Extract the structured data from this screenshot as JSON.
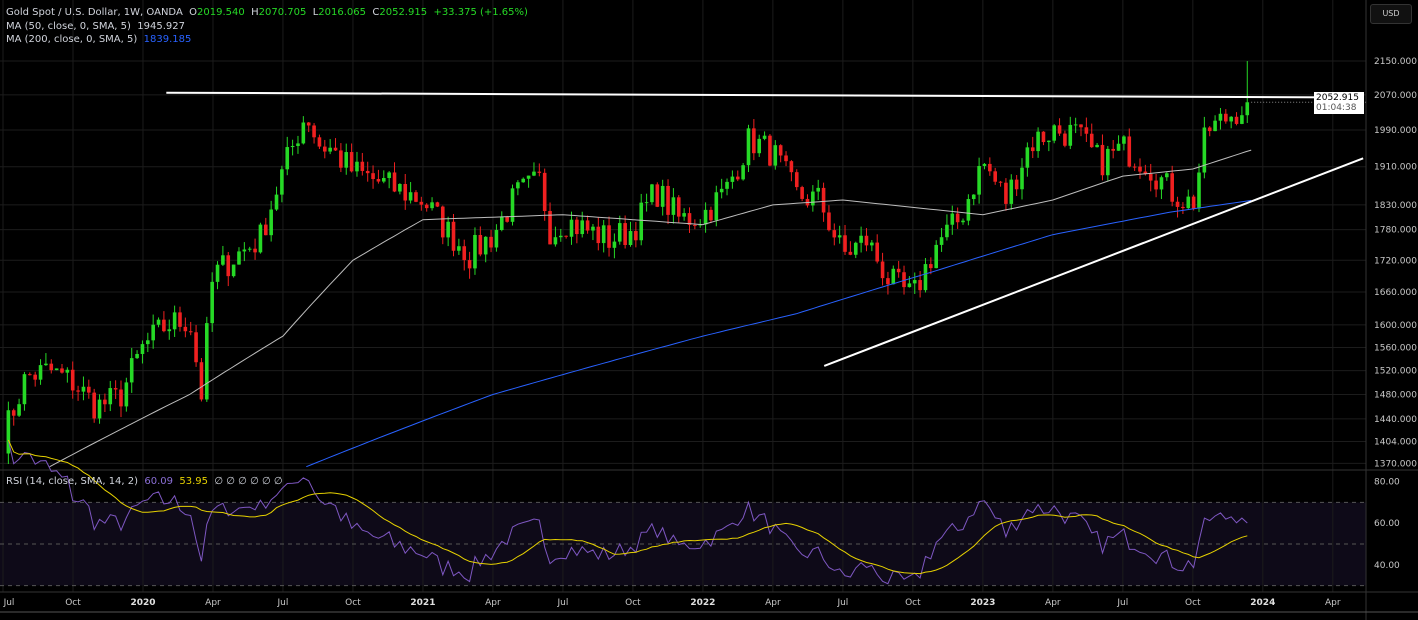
{
  "header": {
    "symbol": "Gold Spot / U.S. Dollar, 1W, OANDA",
    "o_label": "O",
    "o": "2019.540",
    "h_label": "H",
    "h": "2070.705",
    "l_label": "L",
    "l": "2016.065",
    "c_label": "C",
    "c": "2052.915",
    "change": "+33.375 (+1.65%)"
  },
  "indicators": {
    "ma50_label": "MA (50, close, 0, SMA, 5)",
    "ma50_value": "1945.927",
    "ma200_label": "MA (200, close, 0, SMA, 5)",
    "ma200_value": "1839.185",
    "rsi_label": "RSI (14, close, SMA, 14, 2)",
    "rsi_value": "60.09",
    "rsi_ma_value": "53.95",
    "rsi_extra": "∅ ∅ ∅ ∅ ∅ ∅"
  },
  "price_axis": {
    "currency": "USD",
    "last_price": "2052.915",
    "countdown": "01:04:38"
  },
  "colors": {
    "up": "#26d926",
    "down": "#f02020",
    "ma50": "#bdbdbd",
    "ma200": "#2962ff",
    "rsi": "#7e57c2",
    "rsi_ma": "#e6d100",
    "trendline": "#ffffff"
  },
  "chart_data": {
    "type": "candlestick",
    "title": "Gold Spot / U.S. Dollar, 1W, OANDA",
    "scale": "log",
    "price_ticks": [
      2150,
      2070,
      1990,
      1910,
      1830,
      1780,
      1720,
      1660,
      1600,
      1560,
      1520,
      1480,
      1440,
      1404,
      1370
    ],
    "time_ticks": [
      {
        "label": "Jul",
        "month": 0
      },
      {
        "label": "Oct",
        "month": 3
      },
      {
        "label": "2020",
        "month": 6
      },
      {
        "label": "Apr",
        "month": 9
      },
      {
        "label": "Jul",
        "month": 12
      },
      {
        "label": "Oct",
        "month": 15
      },
      {
        "label": "2021",
        "month": 18
      },
      {
        "label": "Apr",
        "month": 21
      },
      {
        "label": "Jul",
        "month": 24
      },
      {
        "label": "Oct",
        "month": 27
      },
      {
        "label": "2022",
        "month": 30
      },
      {
        "label": "Apr",
        "month": 33
      },
      {
        "label": "Jul",
        "month": 36
      },
      {
        "label": "Oct",
        "month": 39
      },
      {
        "label": "2023",
        "month": 42
      },
      {
        "label": "Apr",
        "month": 45
      },
      {
        "label": "Jul",
        "month": 48
      },
      {
        "label": "Oct",
        "month": 51
      },
      {
        "label": "2024",
        "month": 54
      },
      {
        "label": "Apr",
        "month": 57
      }
    ],
    "close_anchors_by_month": [
      [
        0,
        1410
      ],
      [
        1,
        1510
      ],
      [
        2,
        1520
      ],
      [
        3,
        1500
      ],
      [
        4,
        1460
      ],
      [
        5,
        1475
      ],
      [
        6,
        1560
      ],
      [
        7,
        1600
      ],
      [
        8,
        1610
      ],
      [
        8.5,
        1480
      ],
      [
        9,
        1690
      ],
      [
        10,
        1730
      ],
      [
        11,
        1760
      ],
      [
        12,
        1900
      ],
      [
        13,
        2030
      ],
      [
        13.5,
        1960
      ],
      [
        14,
        1950
      ],
      [
        15,
        1900
      ],
      [
        16,
        1880
      ],
      [
        17,
        1860
      ],
      [
        18,
        1840
      ],
      [
        19,
        1780
      ],
      [
        20,
        1730
      ],
      [
        21,
        1770
      ],
      [
        22,
        1850
      ],
      [
        23,
        1880
      ],
      [
        23.5,
        1770
      ],
      [
        24,
        1800
      ],
      [
        25,
        1780
      ],
      [
        26,
        1760
      ],
      [
        27,
        1780
      ],
      [
        28,
        1860
      ],
      [
        29,
        1800
      ],
      [
        30,
        1810
      ],
      [
        31,
        1860
      ],
      [
        32,
        1970
      ],
      [
        33,
        1940
      ],
      [
        34,
        1850
      ],
      [
        35,
        1840
      ],
      [
        36,
        1730
      ],
      [
        37,
        1760
      ],
      [
        38,
        1680
      ],
      [
        39,
        1650
      ],
      [
        40,
        1750
      ],
      [
        41,
        1800
      ],
      [
        42,
        1920
      ],
      [
        43,
        1840
      ],
      [
        44,
        1960
      ],
      [
        45,
        1990
      ],
      [
        46,
        1980
      ],
      [
        47,
        1920
      ],
      [
        48,
        1950
      ],
      [
        49,
        1920
      ],
      [
        50,
        1860
      ],
      [
        51,
        1830
      ],
      [
        51.6,
        1990
      ],
      [
        52,
        2000
      ],
      [
        53,
        2040
      ],
      [
        53.5,
        2052.915
      ]
    ],
    "ma50_anchors_by_month": [
      [
        2,
        1365
      ],
      [
        8,
        1480
      ],
      [
        12,
        1580
      ],
      [
        15,
        1720
      ],
      [
        18,
        1800
      ],
      [
        24,
        1810
      ],
      [
        30,
        1790
      ],
      [
        33,
        1830
      ],
      [
        36,
        1840
      ],
      [
        42,
        1810
      ],
      [
        45,
        1840
      ],
      [
        48,
        1890
      ],
      [
        51,
        1905
      ],
      [
        53.5,
        1945.927
      ]
    ],
    "ma200_anchors_by_month": [
      [
        13,
        1365
      ],
      [
        21,
        1480
      ],
      [
        30,
        1580
      ],
      [
        34,
        1620
      ],
      [
        40,
        1700
      ],
      [
        45,
        1770
      ],
      [
        50,
        1815
      ],
      [
        53.5,
        1839.185
      ]
    ],
    "trendlines": [
      {
        "name": "resistance",
        "from": {
          "month": 7,
          "price": 2075
        },
        "to": {
          "month": 58.3,
          "price": 2064
        }
      },
      {
        "name": "support",
        "from": {
          "month": 35.2,
          "price": 1528
        },
        "to": {
          "month": 58.3,
          "price": 1928
        }
      }
    ],
    "rsi": {
      "period": 14,
      "ma_period": 14,
      "upper": 70,
      "middle": 50,
      "lower": 30,
      "ticks": [
        80,
        60,
        40
      ],
      "last": 60.09,
      "ma_last": 53.95
    }
  }
}
